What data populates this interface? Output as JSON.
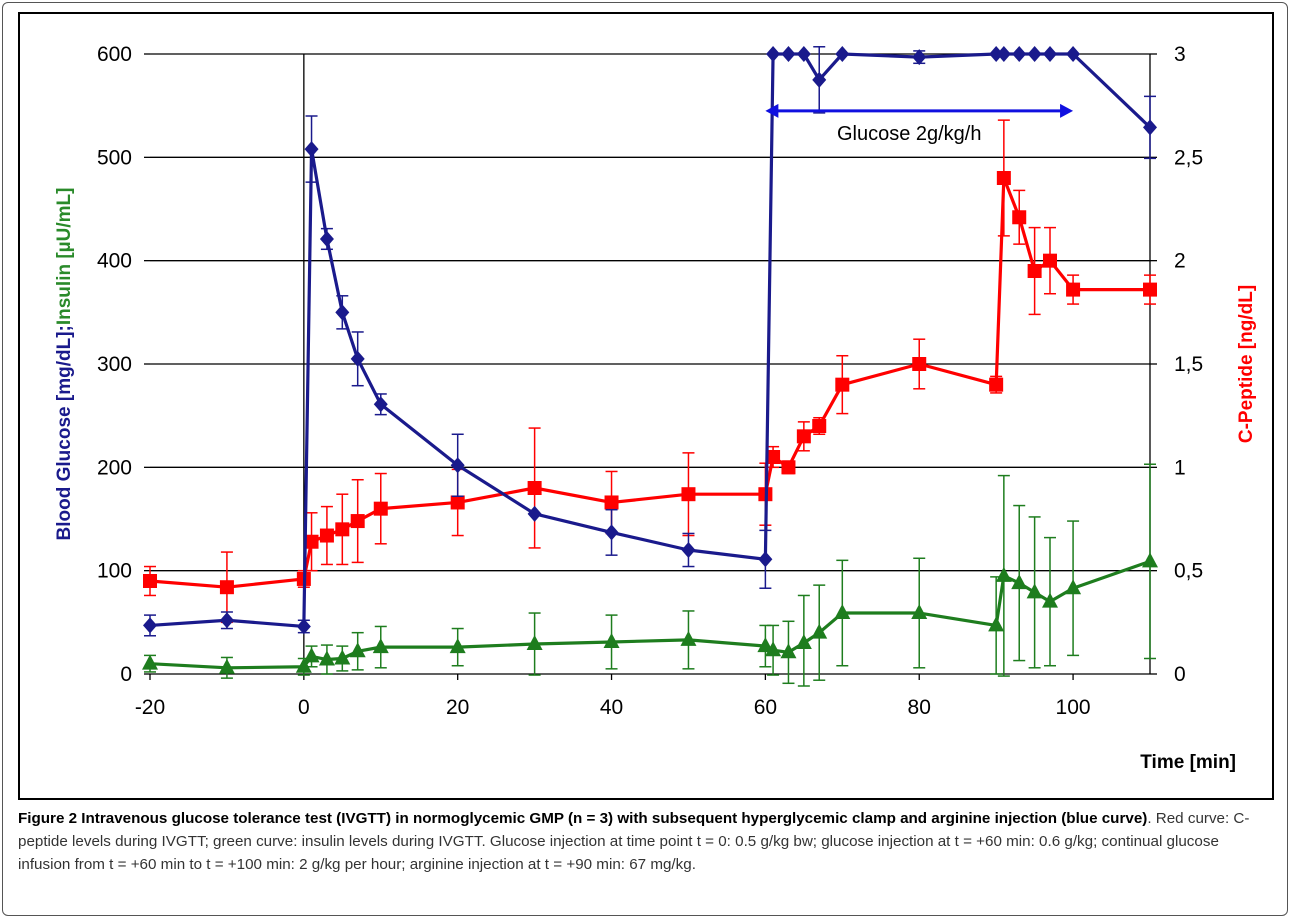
{
  "chart_data": {
    "type": "line",
    "xlabel": "Time [min]",
    "x_ticks": [
      -20,
      0,
      20,
      40,
      60,
      80,
      100
    ],
    "xlim": [
      -20,
      110
    ],
    "ylabel_left_parts": [
      "Blood Glucose [mg/dL];",
      "Insulin [µU/mL]"
    ],
    "ylabel_right": "C-Peptide [ng/dL]",
    "y_left_ticks": [
      0,
      100,
      200,
      300,
      400,
      500,
      600
    ],
    "y_left_lim": [
      0,
      600
    ],
    "y_right_ticks": [
      "0",
      "0,5",
      "1",
      "1,5",
      "2",
      "2,5",
      "3"
    ],
    "y_right_lim": [
      0,
      3
    ],
    "grid": "horizontal",
    "colors": {
      "glucose": "#1a1a8c",
      "cpeptide": "#ff0000",
      "insulin": "#1e7d1e",
      "insulin_label": "#2a8a2a",
      "annotation": "#1010e0"
    },
    "annotation": {
      "text": "Glucose 2g/kg/h",
      "x_start": 60,
      "x_end": 100,
      "y": 545
    },
    "series": [
      {
        "key": "glucose",
        "axis": "left",
        "marker": "diamond",
        "x": [
          -20,
          -10,
          0,
          1,
          3,
          5,
          7,
          10,
          20,
          30,
          40,
          50,
          60,
          61,
          63,
          65,
          67,
          70,
          80,
          90,
          91,
          93,
          95,
          97,
          100,
          110
        ],
        "y": [
          47,
          52,
          46,
          508,
          421,
          350,
          305,
          261,
          202,
          155,
          137,
          120,
          111,
          600,
          600,
          600,
          575,
          600,
          597,
          600,
          600,
          600,
          600,
          600,
          600,
          529
        ],
        "err": [
          10,
          8,
          6,
          32,
          10,
          16,
          26,
          10,
          30,
          0,
          22,
          16,
          28,
          0,
          0,
          0,
          32,
          0,
          6,
          0,
          0,
          0,
          0,
          0,
          0,
          30
        ]
      },
      {
        "key": "cpeptide",
        "axis": "right",
        "marker": "square",
        "x": [
          -20,
          -10,
          0,
          1,
          3,
          5,
          7,
          10,
          20,
          30,
          40,
          50,
          60,
          61,
          63,
          65,
          67,
          70,
          80,
          90,
          91,
          93,
          95,
          97,
          100,
          110
        ],
        "y": [
          0.45,
          0.42,
          0.46,
          0.64,
          0.67,
          0.7,
          0.74,
          0.8,
          0.83,
          0.9,
          0.83,
          0.87,
          0.87,
          1.05,
          1.0,
          1.15,
          1.2,
          1.4,
          1.5,
          1.4,
          2.4,
          2.21,
          1.95,
          2.0,
          1.86,
          1.86
        ],
        "err": [
          0.07,
          0.17,
          0.04,
          0.14,
          0.14,
          0.17,
          0.2,
          0.17,
          0.16,
          0.29,
          0.15,
          0.2,
          0.15,
          0.05,
          0.03,
          0.07,
          0.04,
          0.14,
          0.12,
          0.04,
          0.28,
          0.13,
          0.21,
          0.16,
          0.07,
          0.07
        ]
      },
      {
        "key": "insulin",
        "axis": "left",
        "marker": "triangle",
        "x": [
          -20,
          -10,
          0,
          1,
          3,
          5,
          7,
          10,
          20,
          30,
          40,
          50,
          60,
          61,
          63,
          65,
          67,
          70,
          80,
          90,
          91,
          93,
          95,
          97,
          100,
          110
        ],
        "y": [
          10,
          6,
          7,
          17,
          14,
          15,
          22,
          26,
          26,
          29,
          31,
          33,
          27,
          23,
          21,
          30,
          40,
          59,
          59,
          47,
          95,
          88,
          79,
          70,
          83,
          109
        ],
        "err": [
          8,
          10,
          8,
          10,
          14,
          12,
          18,
          20,
          18,
          30,
          26,
          28,
          20,
          24,
          30,
          46,
          46,
          51,
          53,
          47,
          97,
          75,
          73,
          62,
          65,
          94
        ]
      }
    ]
  },
  "caption": {
    "figure_label": "Figure 2",
    "title": " Intravenous glucose tolerance test (IVGTT) in normoglycemic GMP (n = 3) with subsequent hyperglycemic clamp and arginine injection (blue curve)",
    "body": ". Red curve: C-peptide levels during IVGTT; green curve: insulin levels during IVGTT. Glucose injection at time point t = 0: 0.5 g/kg bw; glucose injection at t = +60 min: 0.6 g/kg; continual glucose infusion from t = +60 min to t = +100 min: 2 g/kg per hour; arginine injection at t = +90 min: 67 mg/kg."
  }
}
